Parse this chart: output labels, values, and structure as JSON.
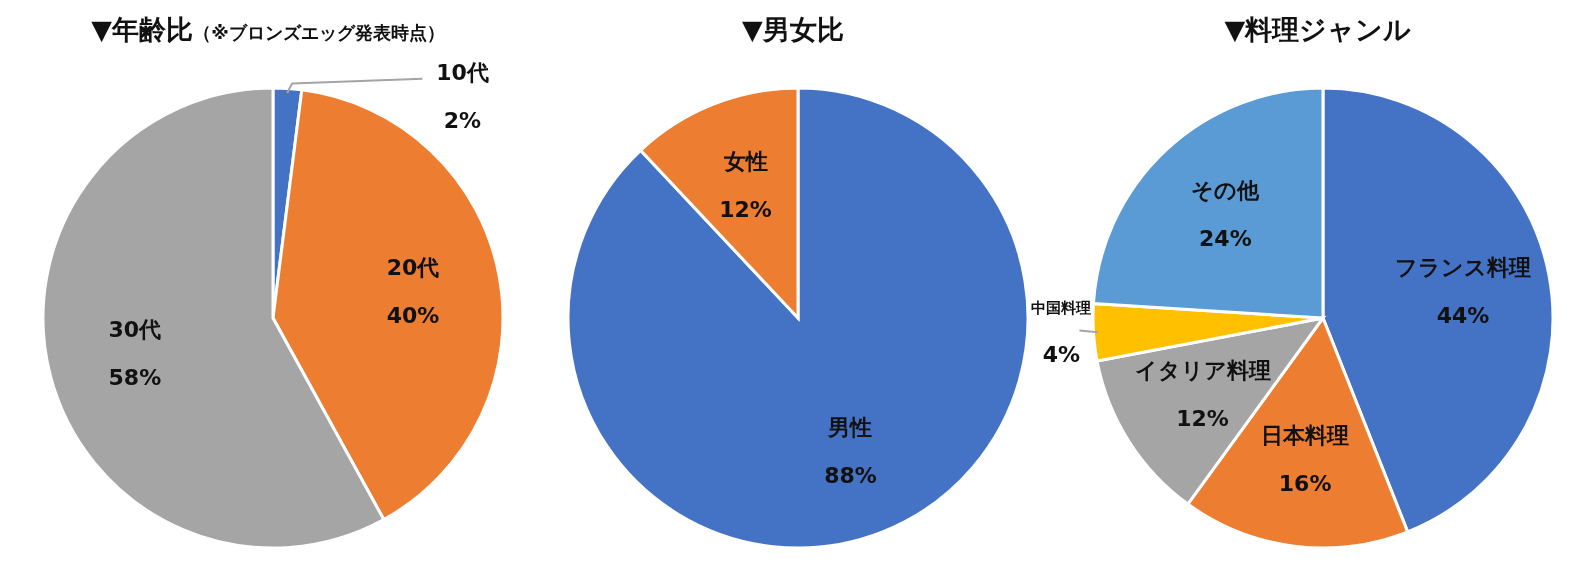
{
  "chart_data": [
    {
      "type": "pie",
      "title": "▼年齢比",
      "subtitle": "（※ブロンズエッグ発表時点）",
      "categories": [
        "10代",
        "20代",
        "30代"
      ],
      "values": [
        2,
        40,
        58
      ],
      "colors": [
        "#4472c4",
        "#ed7d31",
        "#a5a5a5"
      ],
      "value_labels": [
        "2%",
        "40%",
        "58%"
      ]
    },
    {
      "type": "pie",
      "title": "▼男女比",
      "categories": [
        "男性",
        "女性"
      ],
      "values": [
        88,
        12
      ],
      "colors": [
        "#4472c4",
        "#ed7d31"
      ],
      "value_labels": [
        "88%",
        "12%"
      ]
    },
    {
      "type": "pie",
      "title": "▼料理ジャンル",
      "categories": [
        "フランス料理",
        "日本料理",
        "イタリア料理",
        "中国料理",
        "その他"
      ],
      "values": [
        44,
        16,
        12,
        4,
        24
      ],
      "colors": [
        "#4472c4",
        "#ed7d31",
        "#a5a5a5",
        "#ffc000",
        "#5b9bd5"
      ],
      "value_labels": [
        "44%",
        "16%",
        "12%",
        "4%",
        "24%"
      ]
    }
  ]
}
